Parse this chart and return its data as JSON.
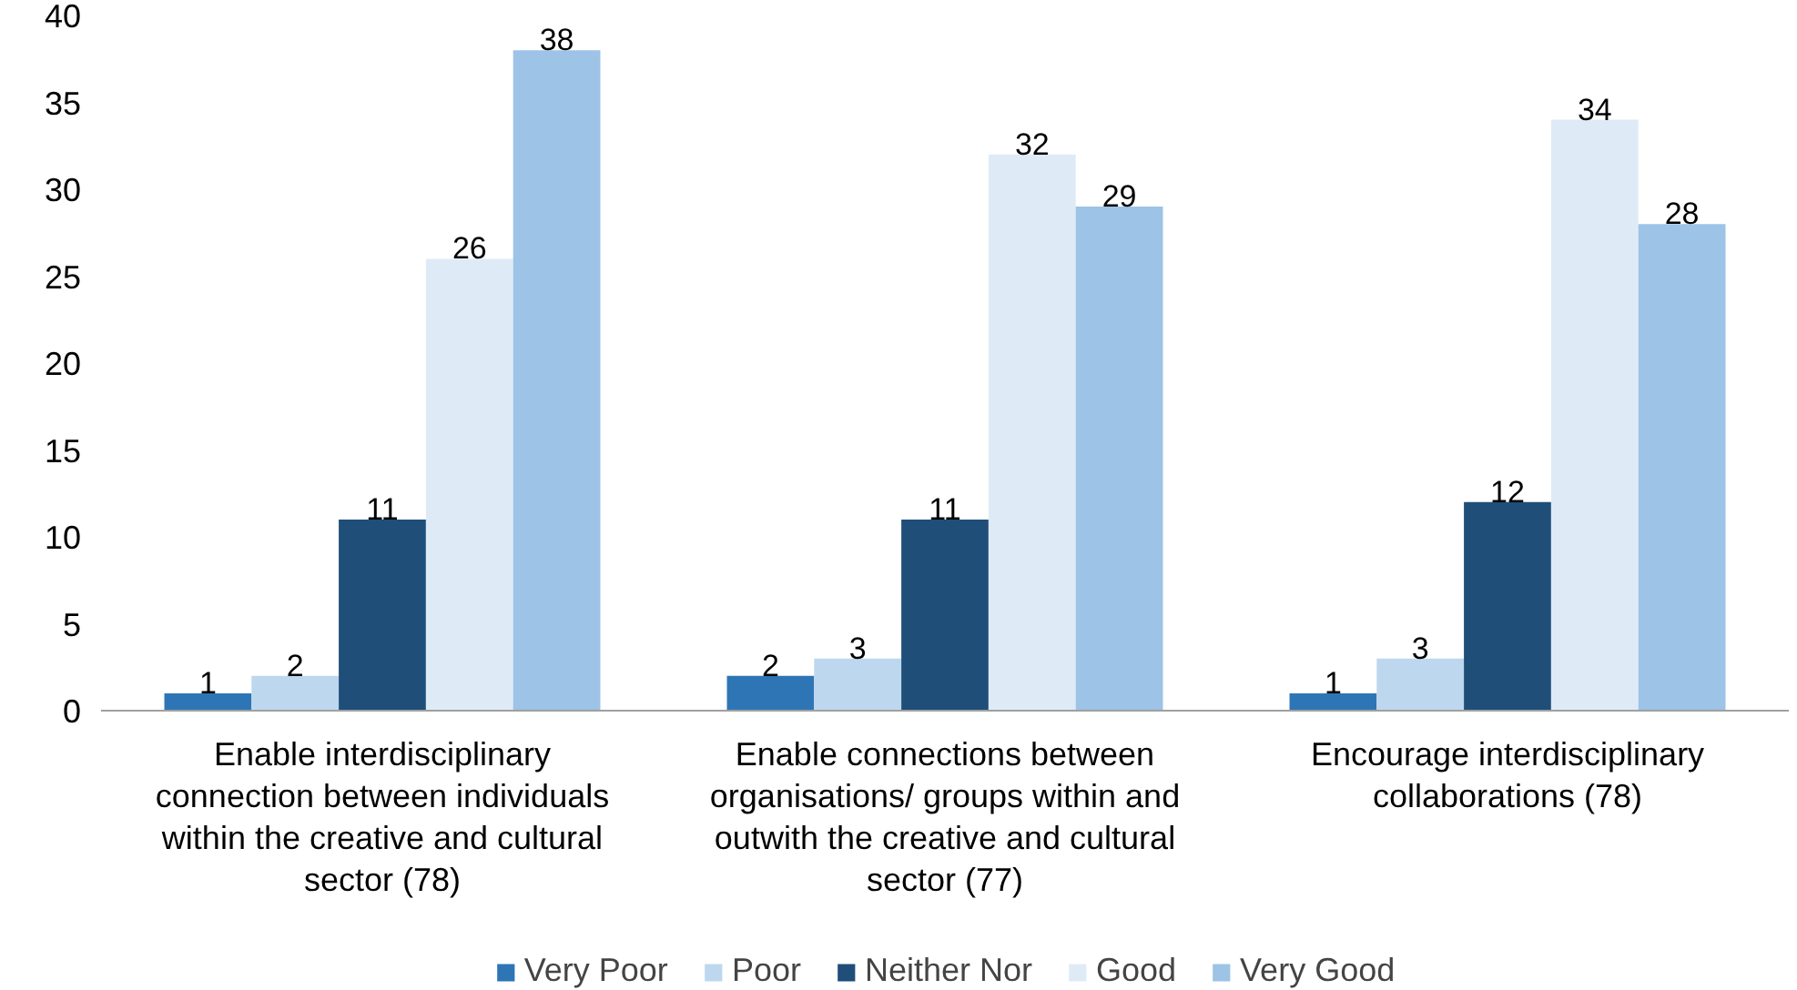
{
  "chart_data": {
    "type": "bar",
    "categories": [
      "Enable interdisciplinary connection between individuals within the creative and cultural sector (78)",
      "Enable connections between organisations/ groups within and outwith the creative and cultural sector (77)",
      "Encourage interdisciplinary collaborations (78)"
    ],
    "series": [
      {
        "name": "Very Poor",
        "color": "#2e75b6",
        "values": [
          1,
          2,
          1
        ]
      },
      {
        "name": "Poor",
        "color": "#bdd7ee",
        "values": [
          2,
          3,
          3
        ]
      },
      {
        "name": "Neither Nor",
        "color": "#1f4e79",
        "values": [
          11,
          11,
          12
        ]
      },
      {
        "name": "Good",
        "color": "#deebf7",
        "values": [
          26,
          32,
          34
        ]
      },
      {
        "name": "Very Good",
        "color": "#9dc3e6",
        "values": [
          38,
          29,
          28
        ]
      }
    ],
    "ylim": [
      0,
      40
    ],
    "yticks": [
      0,
      5,
      10,
      15,
      20,
      25,
      30,
      35,
      40
    ],
    "data_labels": true,
    "grid": false,
    "legend": "bottom"
  }
}
